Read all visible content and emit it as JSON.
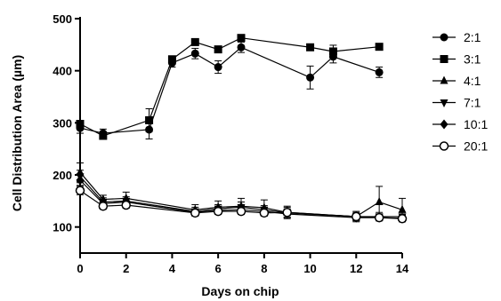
{
  "chart_data": {
    "type": "line",
    "xlabel": "Days on chip",
    "ylabel": "Cell Distribution Area (µm)",
    "xlim": [
      0,
      14
    ],
    "ylim": [
      50,
      500
    ],
    "xticks": [
      0,
      2,
      4,
      6,
      8,
      10,
      12,
      14
    ],
    "yticks": [
      100,
      200,
      300,
      400,
      500
    ],
    "grid": false,
    "legend_position": "right",
    "series": [
      {
        "name": "2:1",
        "marker": "circle-filled",
        "x": [
          0,
          1,
          3,
          4,
          5,
          6,
          7,
          10,
          11,
          13
        ],
        "y": [
          290,
          280,
          287,
          415,
          433,
          407,
          445,
          387,
          427,
          397
        ],
        "err": [
          10,
          8,
          18,
          8,
          10,
          12,
          10,
          22,
          12,
          10
        ]
      },
      {
        "name": "3:1",
        "marker": "square-filled",
        "x": [
          0,
          1,
          3,
          4,
          5,
          6,
          7,
          10,
          11,
          13
        ],
        "y": [
          298,
          275,
          305,
          422,
          455,
          441,
          463,
          445,
          437,
          446
        ],
        "err": [
          6,
          6,
          22,
          5,
          5,
          6,
          6,
          6,
          12,
          4
        ]
      },
      {
        "name": "4:1",
        "marker": "triangle-up-filled",
        "x": [
          0,
          1,
          2,
          5,
          6,
          7,
          8,
          9,
          12,
          13,
          14
        ],
        "y": [
          205,
          153,
          155,
          133,
          138,
          140,
          137,
          128,
          120,
          148,
          133
        ],
        "err": [
          18,
          8,
          12,
          10,
          12,
          15,
          15,
          12,
          10,
          30,
          22
        ]
      },
      {
        "name": "7:1",
        "marker": "triangle-down-filled",
        "x": [
          0,
          1,
          2,
          5,
          6,
          7,
          8,
          9,
          12,
          13,
          14
        ],
        "y": [
          197,
          148,
          150,
          130,
          135,
          138,
          133,
          127,
          120,
          120,
          120
        ],
        "err": [
          12,
          8,
          8,
          8,
          8,
          10,
          8,
          8,
          8,
          8,
          8
        ]
      },
      {
        "name": "10:1",
        "marker": "diamond-filled",
        "x": [
          0,
          1,
          2,
          5,
          6,
          7,
          8,
          9,
          12,
          13,
          14
        ],
        "y": [
          190,
          145,
          148,
          128,
          132,
          133,
          130,
          125,
          118,
          118,
          117
        ],
        "err": [
          10,
          6,
          6,
          6,
          6,
          8,
          6,
          6,
          6,
          6,
          6
        ]
      },
      {
        "name": "20:1",
        "marker": "circle-open",
        "x": [
          0,
          1,
          2,
          5,
          6,
          7,
          8,
          9,
          12,
          13,
          14
        ],
        "y": [
          170,
          140,
          142,
          127,
          130,
          130,
          127,
          128,
          120,
          118,
          116
        ],
        "err": [
          8,
          6,
          6,
          6,
          6,
          6,
          6,
          10,
          6,
          6,
          6
        ]
      }
    ]
  }
}
